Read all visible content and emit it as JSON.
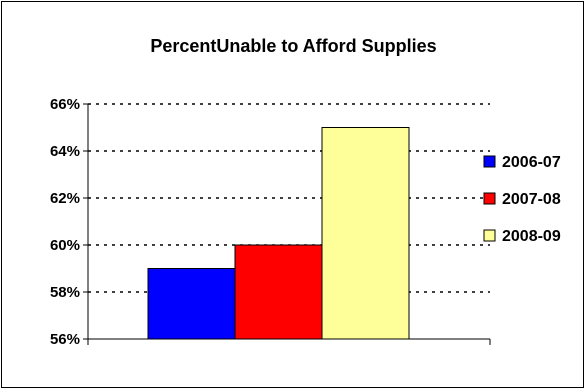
{
  "chart_data": {
    "type": "bar",
    "title": "PercentUnable to Afford Supplies",
    "xlabel": "",
    "ylabel": "",
    "categories": [
      ""
    ],
    "series": [
      {
        "name": "2006-07",
        "values": [
          59
        ],
        "color": "#0000ff"
      },
      {
        "name": "2007-08",
        "values": [
          60
        ],
        "color": "#ff0000"
      },
      {
        "name": "2008-09",
        "values": [
          65
        ],
        "color": "#ffff99"
      }
    ],
    "ylim": [
      56,
      66
    ],
    "yticks": [
      "56%",
      "58%",
      "60%",
      "62%",
      "64%",
      "66%"
    ],
    "grid": true,
    "legend": "right"
  }
}
